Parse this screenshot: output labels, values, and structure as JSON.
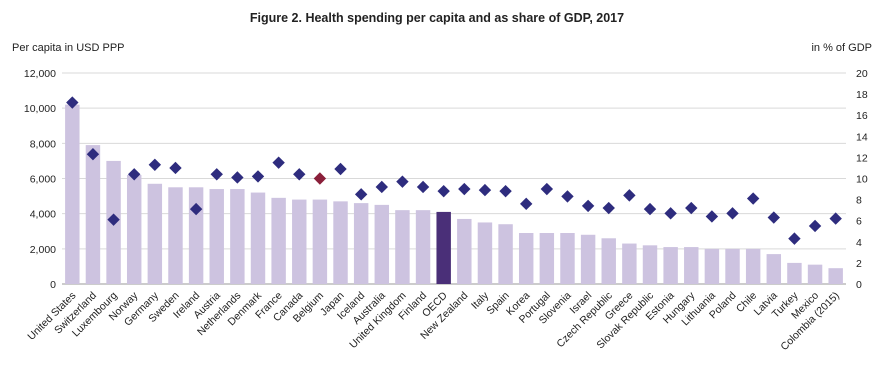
{
  "chart_data": {
    "type": "bar",
    "title": "Figure 2. Health spending per capita and as share of GDP, 2017",
    "ylabel": "Per capita in USD PPP",
    "y2label": "in % of GDP",
    "ylim": [
      0,
      12000
    ],
    "y2lim": [
      0,
      20
    ],
    "yticks": [
      "0",
      "2,000",
      "4,000",
      "6,000",
      "8,000",
      "10,000",
      "12,000"
    ],
    "y2ticks": [
      "0",
      "2",
      "4",
      "6",
      "8",
      "10",
      "12",
      "14",
      "16",
      "18",
      "20"
    ],
    "grid": true,
    "categories": [
      "United States",
      "Switzerland",
      "Luxembourg",
      "Norway",
      "Germany",
      "Sweden",
      "Ireland",
      "Austria",
      "Netherlands",
      "Denmark",
      "France",
      "Canada",
      "Belgium",
      "Japan",
      "Iceland",
      "Australia",
      "United Kingdom",
      "Finland",
      "OECD",
      "New Zealand",
      "Italy",
      "Spain",
      "Korea",
      "Portugal",
      "Slovenia",
      "Israel",
      "Czech Republic",
      "Greece",
      "Slovak Republic",
      "Estonia",
      "Hungary",
      "Lithuania",
      "Poland",
      "Chile",
      "Latvia",
      "Turkey",
      "Mexico",
      "Colombia (2015)"
    ],
    "series": [
      {
        "name": "",
        "axis": "left",
        "kind": "bar",
        "values": [
          10200,
          7900,
          7000,
          6200,
          5700,
          5500,
          5500,
          5400,
          5400,
          5200,
          4900,
          4800,
          4800,
          4700,
          4600,
          4500,
          4200,
          4200,
          4100,
          3700,
          3500,
          3400,
          2900,
          2900,
          2900,
          2800,
          2600,
          2300,
          2200,
          2100,
          2100,
          2000,
          2000,
          2000,
          1700,
          1200,
          1100,
          900
        ],
        "color": "#cdc3e0",
        "highlight_index": 18,
        "highlight_color": "#4a2f78"
      },
      {
        "name": "",
        "axis": "right",
        "kind": "marker",
        "values": [
          17.2,
          12.3,
          6.1,
          10.4,
          11.3,
          11.0,
          7.1,
          10.4,
          10.1,
          10.2,
          11.5,
          10.4,
          10.0,
          10.9,
          8.5,
          9.2,
          9.7,
          9.2,
          8.8,
          9.0,
          8.9,
          8.8,
          7.6,
          9.0,
          8.3,
          7.4,
          7.2,
          8.4,
          7.1,
          6.7,
          7.2,
          6.4,
          6.7,
          8.1,
          6.3,
          4.3,
          5.5,
          6.2
        ],
        "color": "#2e2c7e",
        "highlight_index": 12,
        "highlight_color": "#8a1f3a"
      }
    ]
  }
}
